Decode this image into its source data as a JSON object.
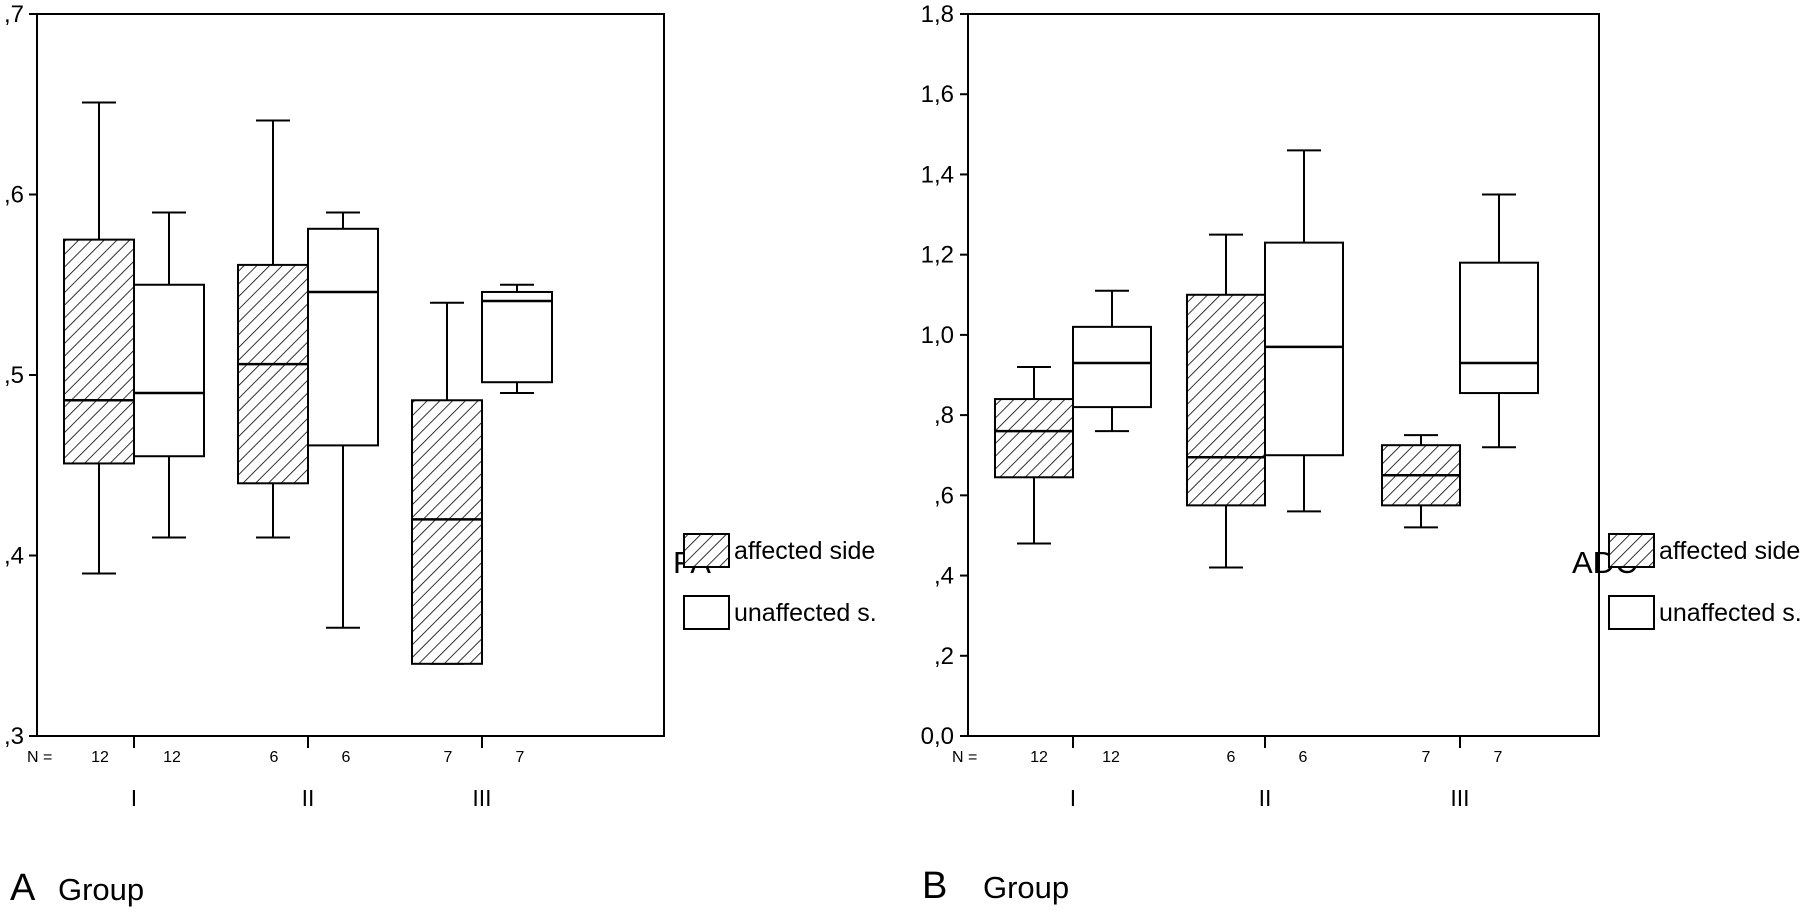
{
  "panel_letters": [
    "A",
    "B"
  ],
  "chart_data": [
    {
      "type": "box",
      "panel": "A",
      "measure_label": "FA",
      "xlabel": "Group",
      "ylim": [
        0.3,
        0.7
      ],
      "yticks": [
        {
          "value": 0.3,
          "label": ",3"
        },
        {
          "value": 0.4,
          "label": ",4"
        },
        {
          "value": 0.5,
          "label": ",5"
        },
        {
          "value": 0.6,
          "label": ",6"
        },
        {
          "value": 0.7,
          "label": ",7"
        }
      ],
      "n_prefix": "N =",
      "categories": [
        "I",
        "II",
        "III"
      ],
      "series": [
        {
          "name": "affected side",
          "pattern": "hatched",
          "n": [
            "12",
            "6",
            "7"
          ],
          "boxes": [
            {
              "min": 0.39,
              "q1": 0.451,
              "median": 0.486,
              "q3": 0.575,
              "max": 0.651
            },
            {
              "min": 0.41,
              "q1": 0.44,
              "median": 0.506,
              "q3": 0.561,
              "max": 0.641
            },
            {
              "min": 0.34,
              "q1": 0.34,
              "median": 0.42,
              "q3": 0.486,
              "max": 0.54
            }
          ]
        },
        {
          "name": "unaffected s.",
          "pattern": "open",
          "n": [
            "12",
            "6",
            "7"
          ],
          "boxes": [
            {
              "min": 0.41,
              "q1": 0.455,
              "median": 0.49,
              "q3": 0.55,
              "max": 0.59
            },
            {
              "min": 0.36,
              "q1": 0.461,
              "median": 0.546,
              "q3": 0.581,
              "max": 0.59
            },
            {
              "min": 0.49,
              "q1": 0.496,
              "median": 0.541,
              "q3": 0.546,
              "max": 0.55
            }
          ]
        }
      ],
      "legend": [
        {
          "label": "affected side",
          "pattern": "hatched"
        },
        {
          "label": "unaffected s.",
          "pattern": "open"
        }
      ]
    },
    {
      "type": "box",
      "panel": "B",
      "measure_label": "ADC",
      "xlabel": "Group",
      "ylim": [
        0.0,
        1.8
      ],
      "yticks": [
        {
          "value": 0.0,
          "label": "0,0"
        },
        {
          "value": 0.2,
          "label": ",2"
        },
        {
          "value": 0.4,
          "label": ",4"
        },
        {
          "value": 0.6,
          "label": ",6"
        },
        {
          "value": 0.8,
          "label": ",8"
        },
        {
          "value": 1.0,
          "label": "1,0"
        },
        {
          "value": 1.2,
          "label": "1,2"
        },
        {
          "value": 1.4,
          "label": "1,4"
        },
        {
          "value": 1.6,
          "label": "1,6"
        },
        {
          "value": 1.8,
          "label": "1,8"
        }
      ],
      "n_prefix": "N =",
      "categories": [
        "I",
        "II",
        "III"
      ],
      "series": [
        {
          "name": "affected side",
          "pattern": "hatched",
          "n": [
            "12",
            "6",
            "7"
          ],
          "boxes": [
            {
              "min": 0.48,
              "q1": 0.645,
              "median": 0.76,
              "q3": 0.84,
              "max": 0.92
            },
            {
              "min": 0.42,
              "q1": 0.575,
              "median": 0.695,
              "q3": 1.1,
              "max": 1.25
            },
            {
              "min": 0.52,
              "q1": 0.575,
              "median": 0.65,
              "q3": 0.725,
              "max": 0.75
            }
          ]
        },
        {
          "name": "unaffected s.",
          "pattern": "open",
          "n": [
            "12",
            "6",
            "7"
          ],
          "boxes": [
            {
              "min": 0.76,
              "q1": 0.82,
              "median": 0.93,
              "q3": 1.02,
              "max": 1.11
            },
            {
              "min": 0.56,
              "q1": 0.7,
              "median": 0.97,
              "q3": 1.23,
              "max": 1.46
            },
            {
              "min": 0.72,
              "q1": 0.855,
              "median": 0.93,
              "q3": 1.18,
              "max": 1.35
            }
          ]
        }
      ],
      "legend": [
        {
          "label": "affected side",
          "pattern": "hatched"
        },
        {
          "label": "unaffected s.",
          "pattern": "open"
        }
      ]
    }
  ]
}
